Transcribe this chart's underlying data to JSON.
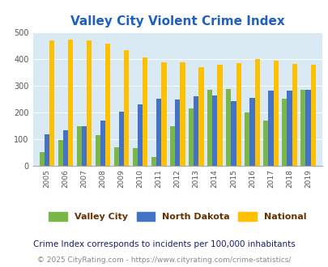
{
  "title": "Valley City Violent Crime Index",
  "title_color": "#2060c0",
  "years": [
    2005,
    2006,
    2007,
    2008,
    2009,
    2010,
    2011,
    2012,
    2013,
    2014,
    2015,
    2016,
    2017,
    2018,
    2019
  ],
  "valley_city": [
    50,
    97,
    147,
    115,
    68,
    65,
    33,
    148,
    215,
    285,
    287,
    198,
    168,
    250,
    285
  ],
  "north_dakota": [
    117,
    132,
    147,
    170,
    203,
    228,
    250,
    248,
    260,
    263,
    240,
    253,
    280,
    280,
    283
  ],
  "national": [
    469,
    473,
    467,
    455,
    432,
    405,
    387,
    387,
    367,
    377,
    383,
    398,
    394,
    380,
    379
  ],
  "valley_city_color": "#7ab648",
  "north_dakota_color": "#4472c4",
  "national_color": "#ffc000",
  "plot_bg_color": "#daeaf5",
  "ylim": [
    0,
    500
  ],
  "yticks": [
    0,
    100,
    200,
    300,
    400,
    500
  ],
  "legend_labels": [
    "Valley City",
    "North Dakota",
    "National"
  ],
  "legend_text_color": "#663300",
  "footnote1": "Crime Index corresponds to incidents per 100,000 inhabitants",
  "footnote1_color": "#1a1a6e",
  "footnote2": "© 2025 CityRating.com - https://www.cityrating.com/crime-statistics/",
  "footnote2_color": "#888888",
  "bar_width": 0.27
}
